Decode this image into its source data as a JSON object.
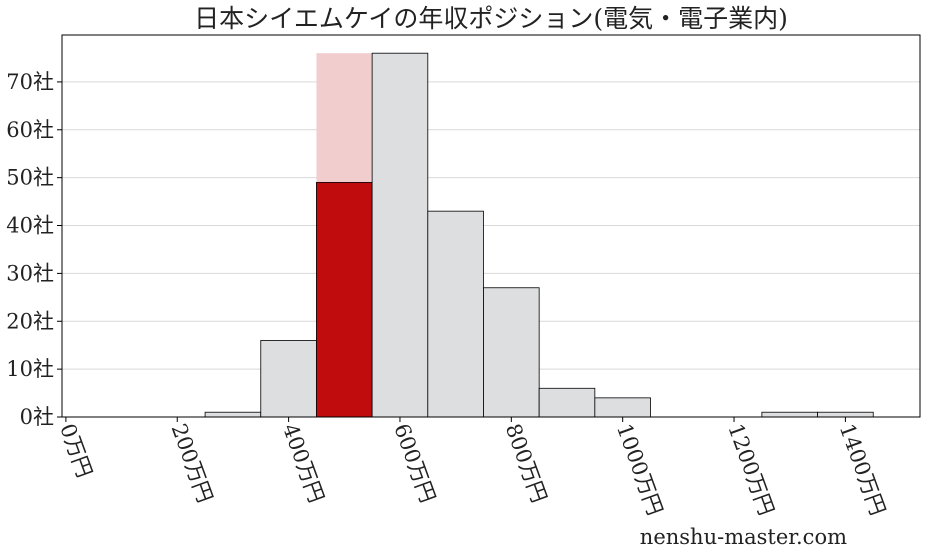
{
  "chart_data": {
    "type": "histogram",
    "title": "日本シイエムケイの年収ポジション(電気・電子業内)",
    "bins": [
      50,
      150,
      250,
      350,
      450,
      550,
      650,
      750,
      850,
      950,
      1050,
      1150,
      1250,
      1350,
      1450
    ],
    "counts": [
      0,
      0,
      1,
      16,
      49,
      76,
      43,
      27,
      6,
      4,
      0,
      0,
      1,
      1
    ],
    "color": "#dddee0",
    "highlight": {
      "index": 4,
      "color": "#c00c0c",
      "band_top": 76,
      "band_color": "#f2cdcd"
    },
    "xlim": [
      -7,
      1534
    ],
    "ylim": [
      0,
      79.8
    ],
    "xticks": [
      {
        "value": 0,
        "label": "0万円"
      },
      {
        "value": 200,
        "label": "200万円"
      },
      {
        "value": 400,
        "label": "400万円"
      },
      {
        "value": 600,
        "label": "600万円"
      },
      {
        "value": 800,
        "label": "800万円"
      },
      {
        "value": 1000,
        "label": "1000万円"
      },
      {
        "value": 1200,
        "label": "1200万円"
      },
      {
        "value": 1400,
        "label": "1400万円"
      }
    ],
    "yticks": [
      {
        "value": 0,
        "label": "0社"
      },
      {
        "value": 10,
        "label": "10社"
      },
      {
        "value": 20,
        "label": "20社"
      },
      {
        "value": 30,
        "label": "30社"
      },
      {
        "value": 40,
        "label": "40社"
      },
      {
        "value": 50,
        "label": "50社"
      },
      {
        "value": 60,
        "label": "60社"
      },
      {
        "value": 70,
        "label": "70社"
      }
    ],
    "grid": true,
    "source": "nenshu-master.com"
  }
}
